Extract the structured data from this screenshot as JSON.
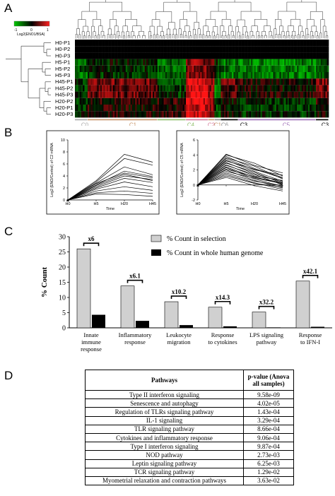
{
  "panels": {
    "a": {
      "letter": "A",
      "legend": {
        "low": "-1",
        "mid": "0",
        "high": "1",
        "label": "Log2(ENO1/BSA)"
      },
      "rows": [
        "H0-P1",
        "H0-P2",
        "H0-P3",
        "H5-P1",
        "H5-P2",
        "H5-P3",
        "H45-P1",
        "H45-P2",
        "H45-P3",
        "H20-P2",
        "H20-P1",
        "H20-P3"
      ],
      "clusters": [
        {
          "label": "C0",
          "color": "#a8a8a8"
        },
        {
          "label": "C1",
          "color": "#c8966a"
        },
        {
          "label": "C4",
          "color": "#8fbf6a"
        },
        {
          "label": "C2",
          "color": "#d4789a"
        },
        {
          "label": "C1",
          "color": "#c8966a"
        },
        {
          "label": "C6",
          "color": "#8c8c8c"
        },
        {
          "label": "C3",
          "color": "#000000"
        },
        {
          "label": "C5",
          "color": "#a070b8"
        },
        {
          "label": "C3",
          "color": "#000000"
        }
      ],
      "colors": {
        "low": "#00c800",
        "mid": "#000000",
        "high": "#ff2020"
      }
    },
    "b": {
      "letter": "B",
      "plots": [
        {
          "ylabel": "Log2 (ENO/Control) of C2 mRNA",
          "xlabel": "Time",
          "yticks": [
            "0",
            "2",
            "4",
            "6",
            "8",
            "10"
          ],
          "xticks": [
            "H0",
            "H5",
            "H20",
            "H45"
          ]
        },
        {
          "ylabel": "Log2 (ENO/Control) of C5 mRNA",
          "xlabel": "Time",
          "yticks": [
            "-2",
            "0",
            "2",
            "4",
            "6"
          ],
          "xticks": [
            "H0",
            "H5",
            "H20",
            "H45"
          ]
        }
      ]
    },
    "c": {
      "letter": "C",
      "legend": [
        "% Count in selection",
        "% Count in whole human genome"
      ],
      "ylabel": "% Count",
      "yticks": [
        "0",
        "5",
        "10",
        "15",
        "20",
        "25",
        "30"
      ],
      "folds": [
        "x6",
        "x6.1",
        "x10.2",
        "x14.3",
        "x32.2",
        "x42.1"
      ],
      "categories": [
        [
          "Innate",
          "immune",
          "response"
        ],
        [
          "Inflammatory",
          "response"
        ],
        [
          "Leukocyte",
          "migration"
        ],
        [
          "Response",
          "to cytokines"
        ],
        [
          "LPS signaling",
          "pathway"
        ],
        [
          "Response",
          "to IFN-I"
        ]
      ]
    },
    "d": {
      "letter": "D",
      "header": {
        "pathways": "Pathways",
        "pvalue_line1": "p-value (Anova",
        "pvalue_line2": "all samples)"
      },
      "rows": [
        {
          "pathway": "Type II interferon signaling",
          "p": "9.58e-09"
        },
        {
          "pathway": "Senescence and autophagy",
          "p": "4.02e-05"
        },
        {
          "pathway": "Regulation of TLRs signaling pathway",
          "p": "1.43e-04"
        },
        {
          "pathway": "IL-1 signaling",
          "p": "3.29e-04"
        },
        {
          "pathway": "TLR signaling pathway",
          "p": "8.66e-04"
        },
        {
          "pathway": "Cytokines and inflammatory response",
          "p": "9.06e-04"
        },
        {
          "pathway": "Type I interferon signaling",
          "p": "9.87e-04"
        },
        {
          "pathway": "NOD pathway",
          "p": "2.73e-03"
        },
        {
          "pathway": "Leptin signaling pathway",
          "p": "6.25e-03"
        },
        {
          "pathway": "TCR signaling pathway",
          "p": "1.29e-02"
        },
        {
          "pathway": "Myometrial relaxation and contraction pathways",
          "p": "3.63e-02"
        }
      ]
    }
  },
  "chart_data": [
    {
      "type": "heatmap",
      "rows": [
        "H0-P1",
        "H0-P2",
        "H0-P3",
        "H5-P1",
        "H5-P2",
        "H5-P3",
        "H45-P1",
        "H45-P2",
        "H45-P3",
        "H20-P2",
        "H20-P1",
        "H20-P3"
      ],
      "column_clusters": [
        "C0",
        "C1",
        "C4",
        "C2",
        "C1",
        "C6",
        "C3",
        "C5",
        "C3"
      ],
      "scale": [
        -1,
        1
      ]
    },
    {
      "type": "line",
      "x": [
        "H0",
        "H5",
        "H20",
        "H45"
      ],
      "ylabel": "Log2 (ENO/Control) of C2 mRNA",
      "xlabel": "Time",
      "ylim": [
        0,
        10
      ],
      "series": [
        {
          "values": [
            0,
            3.2,
            7.6,
            6.3
          ]
        },
        {
          "values": [
            0,
            3.0,
            6.9,
            5.8
          ]
        },
        {
          "values": [
            0,
            2.8,
            5.5,
            4.2
          ]
        },
        {
          "values": [
            0,
            2.5,
            4.8,
            3.9
          ]
        },
        {
          "values": [
            0,
            2.7,
            4.5,
            3.7
          ]
        },
        {
          "values": [
            0,
            2.4,
            4.3,
            3.2
          ]
        },
        {
          "values": [
            0,
            2.2,
            4.0,
            3.4
          ]
        },
        {
          "values": [
            0,
            2.0,
            3.6,
            2.9
          ]
        },
        {
          "values": [
            0,
            1.8,
            3.0,
            2.2
          ]
        },
        {
          "values": [
            0,
            1.5,
            2.2,
            1.6
          ]
        },
        {
          "values": [
            0,
            1.2,
            1.5,
            1.1
          ]
        },
        {
          "values": [
            0,
            1.0,
            0.9,
            0.6
          ]
        }
      ]
    },
    {
      "type": "line",
      "x": [
        "H0",
        "H5",
        "H20",
        "H45"
      ],
      "ylabel": "Log2 (ENO/Control) of C5 mRNA",
      "xlabel": "Time",
      "ylim": [
        -2,
        6
      ],
      "series": [
        {
          "values": [
            0,
            4.1,
            2.6,
            1.6
          ]
        },
        {
          "values": [
            0,
            4.0,
            2.9,
            1.2
          ]
        },
        {
          "values": [
            0,
            3.8,
            2.2,
            1.0
          ]
        },
        {
          "values": [
            0,
            3.6,
            2.5,
            0.8
          ]
        },
        {
          "values": [
            0,
            3.5,
            2.0,
            1.3
          ]
        },
        {
          "values": [
            0,
            3.3,
            1.8,
            0.5
          ]
        },
        {
          "values": [
            0,
            3.2,
            2.1,
            0.9
          ]
        },
        {
          "values": [
            0,
            3.0,
            1.5,
            0.4
          ]
        },
        {
          "values": [
            0,
            2.9,
            1.7,
            0.2
          ]
        },
        {
          "values": [
            0,
            2.7,
            1.2,
            0.6
          ]
        },
        {
          "values": [
            0,
            2.6,
            1.4,
            0.0
          ]
        },
        {
          "values": [
            0,
            2.4,
            1.0,
            0.3
          ]
        },
        {
          "values": [
            0,
            2.3,
            0.8,
            -0.2
          ]
        },
        {
          "values": [
            0,
            2.1,
            1.1,
            0.1
          ]
        },
        {
          "values": [
            0,
            2.0,
            0.6,
            -0.4
          ]
        },
        {
          "values": [
            0,
            1.8,
            0.9,
            0.2
          ]
        },
        {
          "values": [
            0,
            1.6,
            0.5,
            -0.1
          ]
        },
        {
          "values": [
            0,
            1.4,
            0.3,
            -0.6
          ]
        },
        {
          "values": [
            0,
            1.2,
            0.2,
            -0.3
          ]
        },
        {
          "values": [
            0,
            1.0,
            -0.1,
            -0.8
          ]
        }
      ]
    },
    {
      "type": "bar",
      "categories": [
        "Innate immune response",
        "Inflammatory response",
        "Leukocyte migration",
        "Response to cytokines",
        "LPS signaling pathway",
        "Response to IFN-I"
      ],
      "ylabel": "% Count",
      "ylim": [
        0,
        30
      ],
      "series": [
        {
          "name": "% Count in selection",
          "values": [
            26,
            13.8,
            8.6,
            6.8,
            5.2,
            15.4
          ]
        },
        {
          "name": "% Count in whole human genome",
          "values": [
            4.3,
            2.3,
            0.9,
            0.5,
            0.15,
            0.35
          ]
        }
      ],
      "annotations": [
        "x6",
        "x6.1",
        "x10.2",
        "x14.3",
        "x32.2",
        "x42.1"
      ]
    },
    {
      "type": "table",
      "columns": [
        "Pathways",
        "p-value (Anova all samples)"
      ],
      "rows": [
        [
          "Type II interferon signaling",
          "9.58e-09"
        ],
        [
          "Senescence and autophagy",
          "4.02e-05"
        ],
        [
          "Regulation of TLRs signaling pathway",
          "1.43e-04"
        ],
        [
          "IL-1 signaling",
          "3.29e-04"
        ],
        [
          "TLR signaling pathway",
          "8.66e-04"
        ],
        [
          "Cytokines and inflammatory response",
          "9.06e-04"
        ],
        [
          "Type I interferon signaling",
          "9.87e-04"
        ],
        [
          "NOD pathway",
          "2.73e-03"
        ],
        [
          "Leptin signaling pathway",
          "6.25e-03"
        ],
        [
          "TCR signaling pathway",
          "1.29e-02"
        ],
        [
          "Myometrial relaxation and contraction pathways",
          "3.63e-02"
        ]
      ]
    }
  ]
}
